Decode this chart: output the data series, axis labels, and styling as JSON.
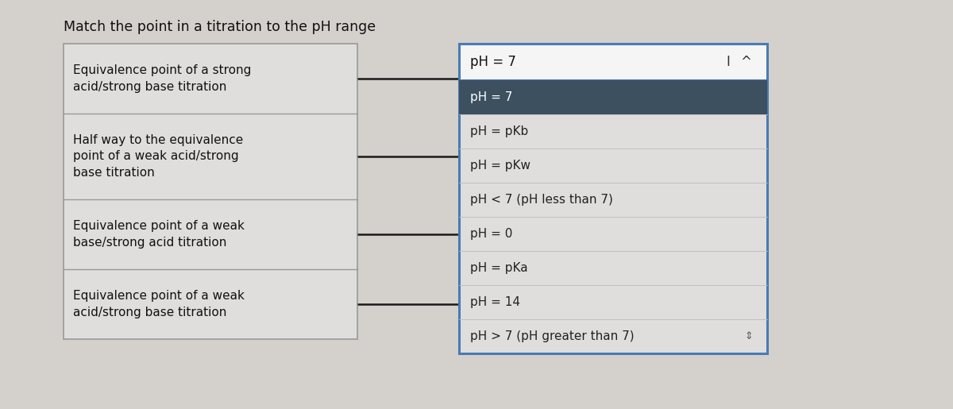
{
  "title": "Match the point in a titration to the pH range",
  "title_fontsize": 12.5,
  "background_color": "#d4d0cc",
  "left_items": [
    "Equivalence point of a strong\nacid/strong base titration",
    "Half way to the equivalence\npoint of a weak acid/strong\nbase titration",
    "Equivalence point of a weak\nbase/strong acid titration",
    "Equivalence point of a weak\nacid/strong base titration"
  ],
  "dropdown_input_text": "pH = 7",
  "selected_item": "pH = 7",
  "dropdown_items": [
    "pH = 7",
    "pH = pKb",
    "pH = pKw",
    "pH < 7 (pH less than 7)",
    "pH = 0",
    "pH = pKa",
    "pH = 14",
    "pH > 7 (pH greater than 7)"
  ],
  "selected_bg": "#3d5060",
  "selected_fg": "#ffffff",
  "dropdown_bg": "#e0dedd",
  "dropdown_fg": "#222222",
  "input_border": "#4a7ab5",
  "input_bg": "#f5f5f5",
  "left_box_bg": "#e0dedd",
  "left_box_border": "#999999",
  "line_color": "#1a1a1a",
  "font_size": 11.0
}
